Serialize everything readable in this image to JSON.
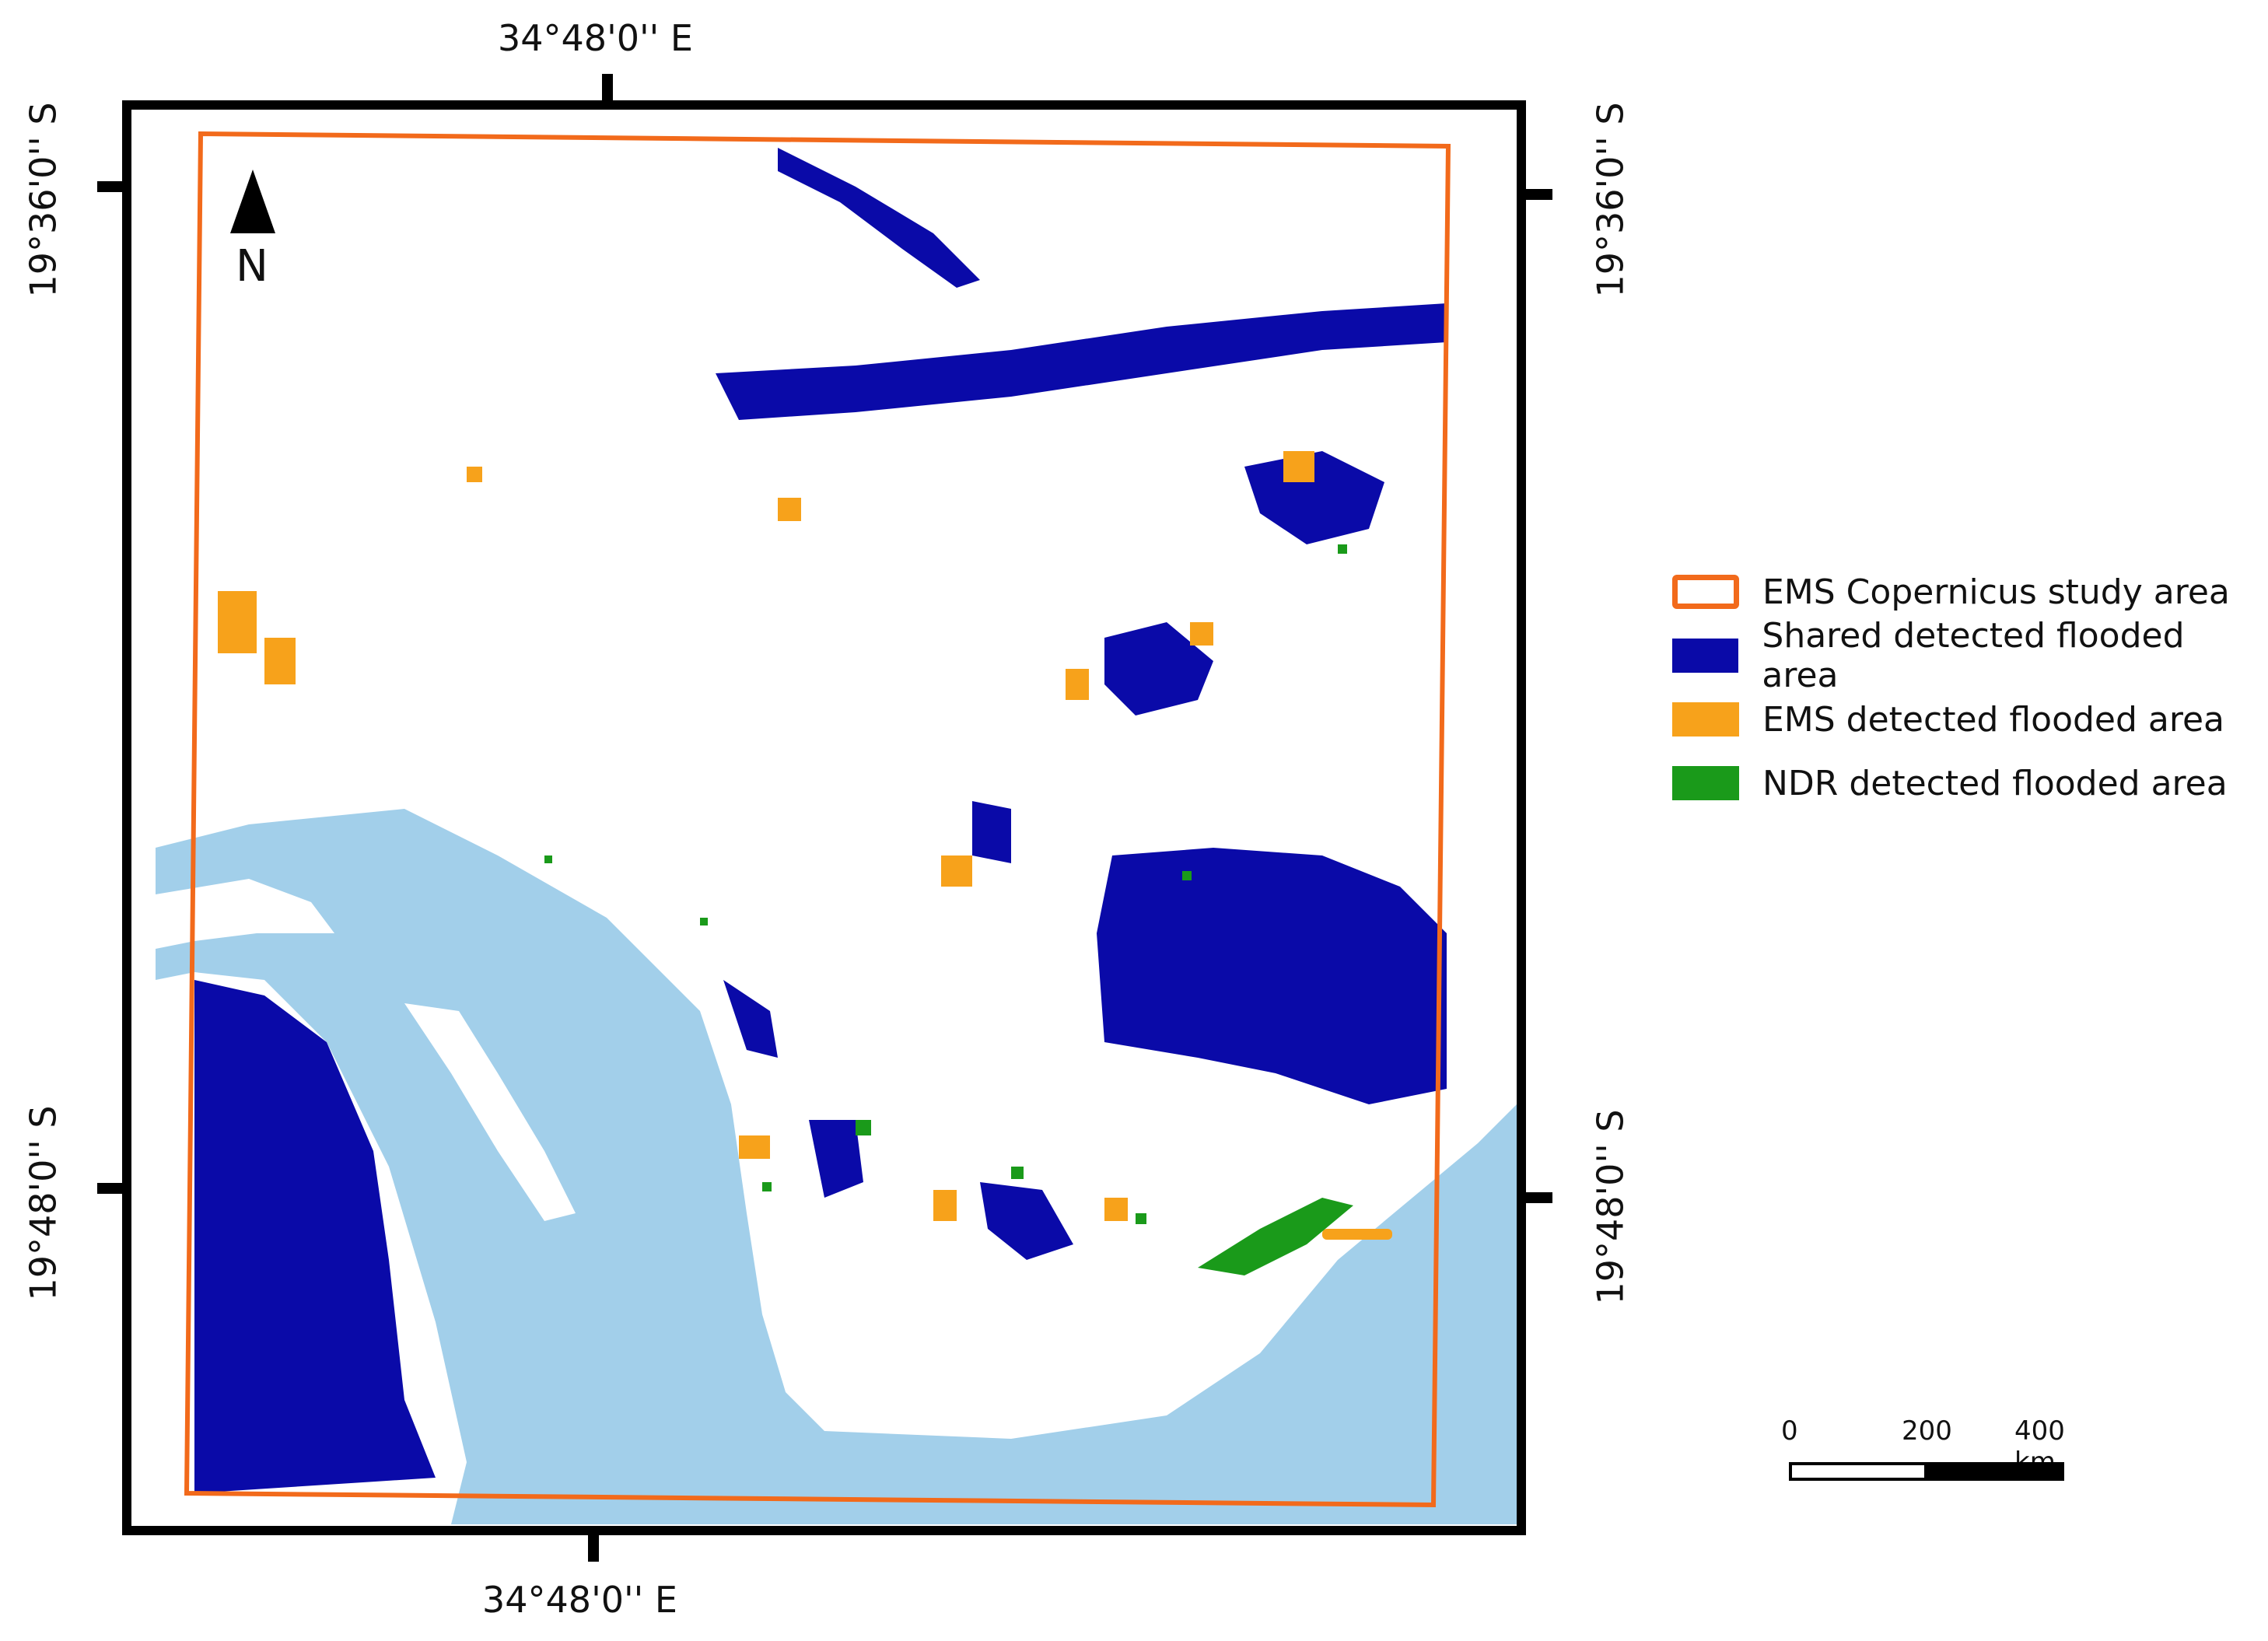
{
  "coords": {
    "top_lon": "34°48'0'' E",
    "bottom_lon": "34°48'0'' E",
    "left_lat_north": "19°36'0'' S",
    "left_lat_south": "19°48'0'' S",
    "right_lat_north": "19°36'0'' S",
    "right_lat_south": "19°48'0'' S"
  },
  "north_arrow": {
    "label": "N",
    "icon": "north-arrow-icon"
  },
  "legend": [
    {
      "label": "EMS Copernicus study area",
      "color": "#f26a1b",
      "style": "outline"
    },
    {
      "label": "Shared detected flooded area",
      "color": "#0a0aa8",
      "style": "fill"
    },
    {
      "label": "EMS detected flooded area",
      "color": "#f7a21b",
      "style": "fill"
    },
    {
      "label": "NDR detected flooded area",
      "color": "#1a9a1a",
      "style": "fill"
    }
  ],
  "scalebar": {
    "ticks": [
      "0",
      "200",
      "400 km"
    ]
  },
  "colors": {
    "water": "#a2cfea",
    "shared": "#0a0aa8",
    "ems": "#f7a21b",
    "ndr": "#1a9a1a",
    "study_area": "#f26a1b"
  }
}
